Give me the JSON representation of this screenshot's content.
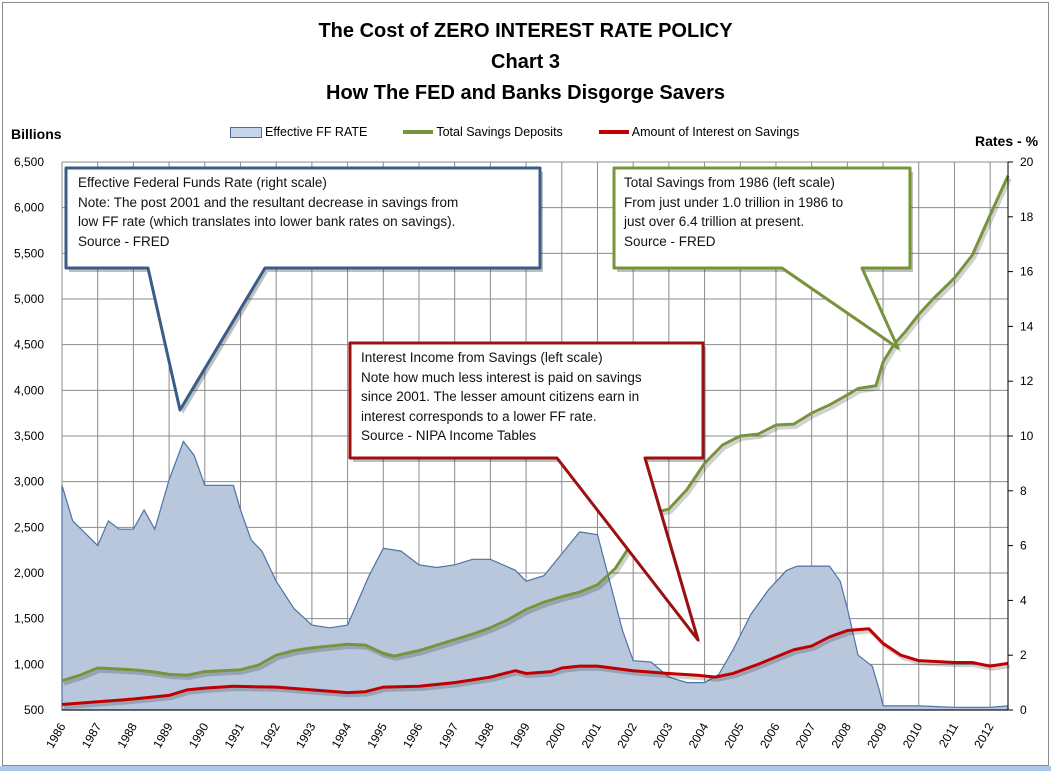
{
  "title_lines": [
    "The Cost of ZERO INTEREST RATE POLICY",
    "Chart 3",
    "How The FED and Banks Disgorge Savers"
  ],
  "chart_data": {
    "type": "line",
    "title": "The Cost of ZERO INTEREST RATE POLICY / Chart 3 / How The FED and Banks Disgorge Savers",
    "xlabel": "",
    "ylabel_left": "Billions",
    "ylabel_right": "Rates - %",
    "ylim_left": [
      500,
      6500
    ],
    "ylim_right": [
      0,
      20
    ],
    "xlim": [
      1986,
      2012.5
    ],
    "grid": true,
    "legend_placement": "top",
    "x_tick_labels": [
      "1986",
      "1987",
      "1988",
      "1989",
      "1990",
      "1991",
      "1992",
      "1993",
      "1994",
      "1995",
      "1996",
      "1997",
      "1998",
      "1999",
      "2000",
      "2001",
      "2002",
      "2003",
      "2004",
      "2005",
      "2006",
      "2007",
      "2008",
      "2009",
      "2010",
      "2011",
      "2012"
    ],
    "y_left_tick_labels": [
      "500",
      "1,000",
      "1,500",
      "2,000",
      "2,500",
      "3,000",
      "3,500",
      "4,000",
      "4,500",
      "5,000",
      "5,500",
      "6,000",
      "6,500"
    ],
    "y_right_tick_labels": [
      "0",
      "2",
      "4",
      "6",
      "8",
      "10",
      "12",
      "14",
      "16",
      "18",
      "20"
    ],
    "series": [
      {
        "name": "Effective FF RATE",
        "kind": "area",
        "axis": "right",
        "color": "#b8c7dc",
        "stroke": "#4f72a6",
        "x": [
          1986,
          1986.3,
          1987,
          1987.3,
          1987.6,
          1988,
          1988.3,
          1988.6,
          1989,
          1989.4,
          1989.7,
          1990,
          1990.8,
          1991,
          1991.3,
          1991.6,
          1992,
          1992.5,
          1993,
          1993.5,
          1994,
          1994.3,
          1994.6,
          1995,
          1995.5,
          1996,
          1996.5,
          1997,
          1997.5,
          1998,
          1998.7,
          1999,
          1999.5,
          2000,
          2000.5,
          2001,
          2001.3,
          2001.7,
          2002,
          2002.5,
          2003,
          2003.5,
          2004,
          2004.4,
          2004.8,
          2005.3,
          2005.8,
          2006.3,
          2006.6,
          2007.5,
          2007.8,
          2008,
          2008.3,
          2008.7,
          2008.9,
          2009,
          2010,
          2011,
          2012,
          2012.5
        ],
        "values": [
          8.2,
          6.9,
          6.0,
          6.9,
          6.6,
          6.6,
          7.3,
          6.6,
          8.4,
          9.8,
          9.3,
          8.2,
          8.2,
          7.3,
          6.2,
          5.8,
          4.7,
          3.7,
          3.1,
          3.0,
          3.1,
          4.0,
          4.9,
          5.9,
          5.8,
          5.3,
          5.2,
          5.3,
          5.5,
          5.5,
          5.1,
          4.7,
          4.9,
          5.7,
          6.5,
          6.4,
          4.9,
          2.9,
          1.8,
          1.75,
          1.2,
          1.0,
          1.0,
          1.3,
          2.2,
          3.5,
          4.4,
          5.1,
          5.25,
          5.25,
          4.7,
          3.7,
          2.0,
          1.6,
          0.7,
          0.15,
          0.15,
          0.1,
          0.1,
          0.15
        ]
      },
      {
        "name": "Total Savings Deposits",
        "kind": "line",
        "axis": "left",
        "color": "#77933c",
        "x": [
          1986,
          1986.5,
          1987,
          1987.5,
          1988,
          1988.5,
          1989,
          1989.5,
          1990,
          1990.5,
          1991,
          1991.5,
          1992,
          1992.5,
          1993,
          1993.5,
          1994,
          1994.5,
          1995,
          1995.3,
          1996,
          1996.5,
          1997,
          1997.5,
          1998,
          1998.5,
          1999,
          1999.5,
          2000,
          2000.5,
          2001,
          2001.5,
          2002,
          2002.5,
          2003,
          2003.5,
          2004,
          2004.5,
          2005,
          2005.5,
          2006,
          2006.5,
          2007,
          2007.5,
          2008,
          2008.3,
          2008.8,
          2009,
          2009.3,
          2009.6,
          2010,
          2010.4,
          2011,
          2011.5,
          2012,
          2012.5
        ],
        "values": [
          820,
          880,
          960,
          950,
          940,
          920,
          890,
          880,
          920,
          930,
          940,
          990,
          1100,
          1150,
          1180,
          1200,
          1220,
          1210,
          1120,
          1090,
          1150,
          1210,
          1270,
          1330,
          1400,
          1490,
          1600,
          1680,
          1740,
          1790,
          1870,
          2050,
          2350,
          2650,
          2700,
          2910,
          3200,
          3400,
          3500,
          3520,
          3620,
          3630,
          3750,
          3840,
          3950,
          4020,
          4050,
          4310,
          4500,
          4630,
          4830,
          5000,
          5230,
          5480,
          5920,
          6350
        ]
      },
      {
        "name": "Amount of Interest on Savings",
        "kind": "line",
        "axis": "left",
        "color": "#c00000",
        "x": [
          1986,
          1987,
          1988,
          1989,
          1989.5,
          1990,
          1990.8,
          1992,
          1993,
          1994,
          1994.5,
          1995,
          1996,
          1997,
          1998,
          1998.7,
          1999,
          1999.7,
          2000,
          2000.5,
          2001,
          2002,
          2003,
          2003.8,
          2004.3,
          2004.8,
          2005.5,
          2006,
          2006.5,
          2007,
          2007.5,
          2008,
          2008.6,
          2009,
          2009.5,
          2010,
          2011,
          2011.5,
          2012,
          2012.5
        ],
        "values": [
          560,
          590,
          620,
          660,
          720,
          740,
          760,
          750,
          720,
          690,
          700,
          750,
          760,
          800,
          860,
          930,
          900,
          920,
          960,
          980,
          980,
          930,
          900,
          880,
          860,
          900,
          1000,
          1080,
          1160,
          1200,
          1300,
          1370,
          1390,
          1230,
          1100,
          1040,
          1020,
          1020,
          980,
          1010
        ]
      }
    ],
    "annotations": [
      {
        "color": "#385d8a",
        "lines": [
          "Effective Federal Funds Rate (right scale)",
          "Note:  The post 2001 and the resultant decrease in savings from",
          "low FF rate (which translates into lower bank rates on savings).",
          "Source - FRED"
        ]
      },
      {
        "color": "#77933c",
        "lines": [
          "Total Savings from 1986 (left scale)",
          "From just under  1.0 trillion in 1986 to",
          "just over 6.4 trillion at present.",
          "Source - FRED"
        ]
      },
      {
        "color": "#9b1010",
        "lines": [
          "Interest Income from Savings (left scale)",
          "Note how much less interest is paid on savings",
          "since 2001.  The lesser amount citizens earn in",
          "interest corresponds to a lower FF rate.",
          "Source - NIPA Income Tables"
        ]
      }
    ]
  }
}
